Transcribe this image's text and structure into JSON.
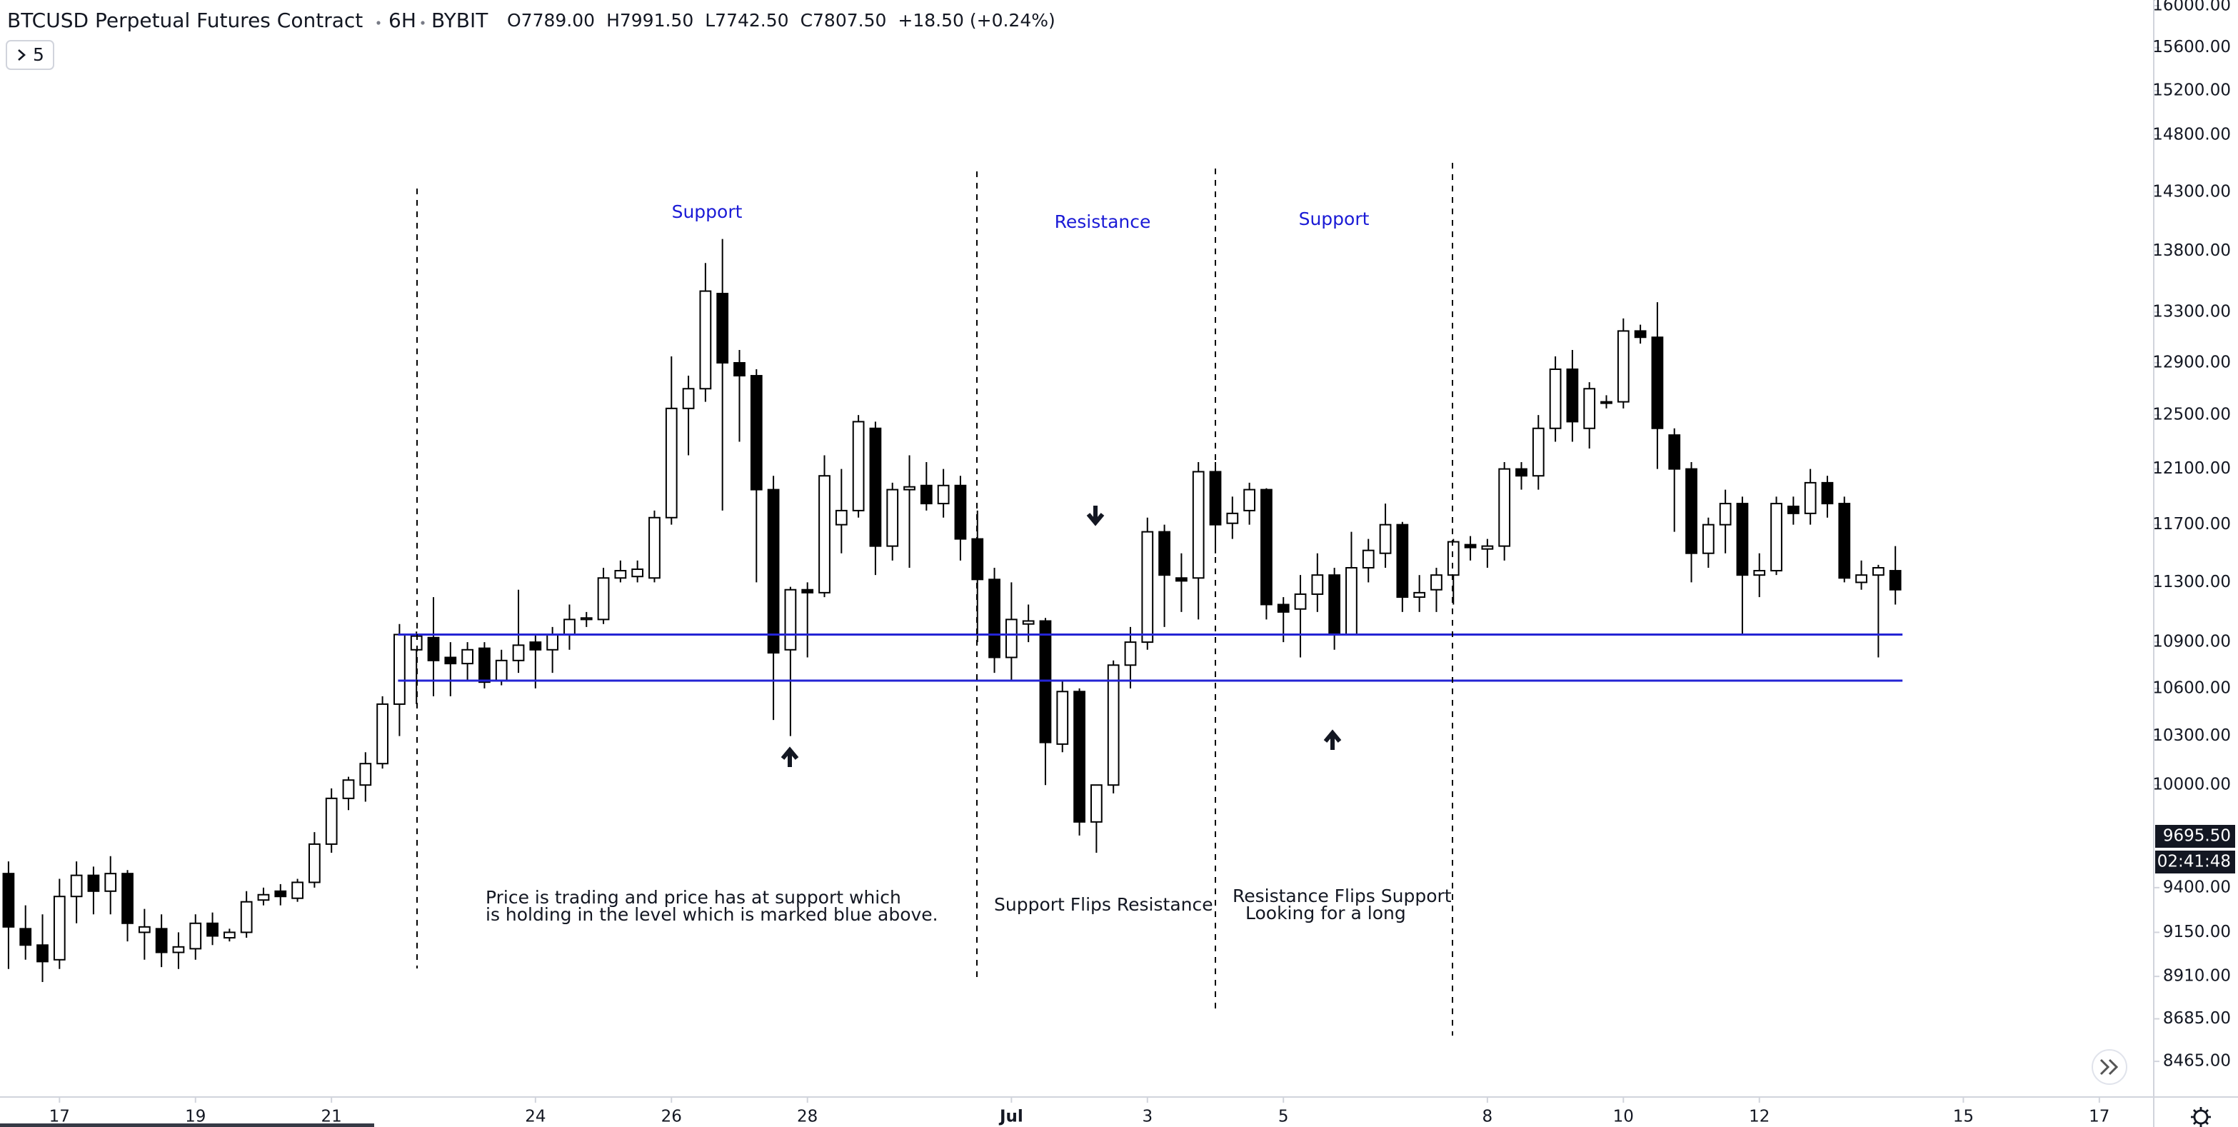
{
  "chart_data": {
    "type": "candlestick",
    "title": "BTCUSD Perpetual Futures Contract",
    "interval": "6H",
    "exchange": "BYBIT",
    "legend": [
      "O7789.00",
      "H7991.50",
      "L7742.50",
      "C7807.50",
      "+18.50 (+0.24%)"
    ],
    "indicator_count": "5",
    "log_scale": true,
    "up_color": "#ffffff",
    "down_color": "#000000",
    "outline_color": "#000000",
    "open": [
      9480,
      9170,
      9080,
      9000,
      9350,
      9470,
      9380,
      9480,
      9150,
      9170,
      9040,
      9060,
      9200,
      9120,
      9150,
      9330,
      9380,
      9340,
      9430,
      9650,
      9920,
      10000,
      10130,
      10500,
      10850,
      10930,
      10800,
      10760,
      10860,
      10650,
      10780,
      10900,
      10850,
      10950,
      11050,
      11050,
      11330,
      11340,
      11330,
      11750,
      12550,
      12700,
      13450,
      12900,
      12800,
      11950,
      10850,
      11250,
      11230,
      11700,
      11800,
      12400,
      11550,
      11950,
      11980,
      11850,
      11980,
      11600,
      11320,
      10800,
      11020,
      11040,
      10250,
      10580,
      9780,
      10000,
      10750,
      10900,
      11650,
      11330,
      11330,
      12080,
      11710,
      11800,
      11950,
      11150,
      11120,
      11220,
      11350,
      10950,
      11400,
      11500,
      11700,
      11200,
      11250,
      11350,
      11560,
      11530,
      11550,
      12100,
      12050,
      12400,
      12850,
      12400,
      12600,
      12600,
      13150,
      13100,
      12350,
      12100,
      11500,
      11700,
      11850,
      11350,
      11380,
      11830,
      11780,
      12000,
      11850,
      11300,
      11350,
      11380
    ],
    "high": [
      9550,
      9300,
      9250,
      9450,
      9550,
      9520,
      9580,
      9500,
      9280,
      9250,
      9150,
      9250,
      9260,
      9170,
      9380,
      9400,
      9420,
      9450,
      9720,
      9980,
      10050,
      10200,
      10550,
      11020,
      10970,
      11200,
      10900,
      10900,
      10900,
      10850,
      11250,
      10950,
      11000,
      11150,
      11100,
      11400,
      11450,
      11450,
      11800,
      12950,
      12800,
      13700,
      13900,
      13000,
      12850,
      12050,
      11270,
      11300,
      12200,
      12100,
      12500,
      12450,
      12000,
      12200,
      12150,
      12100,
      12050,
      11800,
      11400,
      11300,
      11150,
      11060,
      10650,
      10600,
      10000,
      10780,
      11000,
      11750,
      11700,
      11500,
      12150,
      12150,
      11900,
      12000,
      11960,
      11200,
      11350,
      11500,
      11400,
      11650,
      11600,
      11850,
      11720,
      11350,
      11400,
      11600,
      11620,
      11600,
      12150,
      12150,
      12500,
      12950,
      13000,
      12750,
      12650,
      13250,
      13200,
      13380,
      12400,
      12150,
      11750,
      11950,
      11900,
      11500,
      11900,
      11900,
      12100,
      12050,
      11900,
      11450,
      11420,
      11550
    ],
    "low": [
      8950,
      9000,
      8880,
      8950,
      9200,
      9250,
      9250,
      9100,
      9000,
      8960,
      8950,
      9000,
      9080,
      9100,
      9120,
      9300,
      9300,
      9320,
      9400,
      9600,
      9850,
      9900,
      10100,
      10300,
      10500,
      10550,
      10550,
      10650,
      10600,
      10620,
      10700,
      10600,
      10700,
      10850,
      11000,
      11020,
      11300,
      11300,
      11300,
      11700,
      12200,
      12600,
      11800,
      12300,
      11300,
      10400,
      10300,
      10800,
      11200,
      11500,
      11750,
      11350,
      11450,
      11400,
      11800,
      11750,
      11450,
      10900,
      10700,
      10650,
      10900,
      10000,
      10200,
      9700,
      9600,
      9950,
      10600,
      10850,
      11000,
      11100,
      11050,
      11500,
      11600,
      11700,
      11050,
      10900,
      10800,
      11100,
      10850,
      10950,
      11300,
      11400,
      11100,
      11100,
      11100,
      11150,
      11450,
      11400,
      11450,
      11950,
      11950,
      12300,
      12300,
      12250,
      12550,
      12550,
      13050,
      12100,
      11650,
      11300,
      11400,
      11500,
      10950,
      11200,
      11350,
      11700,
      11700,
      11750,
      11300,
      11250,
      10800,
      11150
    ],
    "close": [
      9180,
      9080,
      8990,
      9350,
      9470,
      9380,
      9480,
      9200,
      9180,
      9040,
      9070,
      9200,
      9130,
      9150,
      9320,
      9360,
      9350,
      9430,
      9650,
      9920,
      10030,
      10130,
      10500,
      10950,
      10940,
      10780,
      10760,
      10850,
      10640,
      10780,
      10880,
      10850,
      10950,
      11050,
      11060,
      11330,
      11380,
      11390,
      11750,
      12550,
      12700,
      13470,
      12900,
      12800,
      11950,
      10830,
      11250,
      11230,
      12050,
      11800,
      12450,
      11550,
      11950,
      11970,
      11850,
      11980,
      11600,
      11320,
      10800,
      11050,
      11040,
      10260,
      10580,
      9780,
      10000,
      10750,
      10900,
      11650,
      11350,
      11310,
      12080,
      11700,
      11780,
      11950,
      11150,
      11100,
      11220,
      11350,
      10950,
      11400,
      11520,
      11700,
      11200,
      11230,
      11350,
      11580,
      11540,
      11550,
      12100,
      12050,
      12400,
      12850,
      12450,
      12700,
      12590,
      13150,
      13100,
      12400,
      12100,
      11500,
      11700,
      11850,
      11350,
      11380,
      11850,
      11780,
      12000,
      11850,
      11330,
      11350,
      11400,
      11250
    ],
    "levels": [
      10950,
      10650
    ],
    "level_color": "#2424d4",
    "ylim": [
      8285,
      16055
    ],
    "yticks": [
      {
        "value": 16000,
        "label": "16000.00"
      },
      {
        "value": 15600,
        "label": "15600.00"
      },
      {
        "value": 15200,
        "label": "15200.00"
      },
      {
        "value": 14800,
        "label": "14800.00"
      },
      {
        "value": 14300,
        "label": "14300.00"
      },
      {
        "value": 13800,
        "label": "13800.00"
      },
      {
        "value": 13300,
        "label": "13300.00"
      },
      {
        "value": 12900,
        "label": "12900.00"
      },
      {
        "value": 12500,
        "label": "12500.00"
      },
      {
        "value": 12100,
        "label": "12100.00"
      },
      {
        "value": 11700,
        "label": "11700.00"
      },
      {
        "value": 11300,
        "label": "11300.00"
      },
      {
        "value": 10900,
        "label": "10900.00"
      },
      {
        "value": 10600,
        "label": "10600.00"
      },
      {
        "value": 10300,
        "label": "10300.00"
      },
      {
        "value": 10000,
        "label": "10000.00"
      },
      {
        "value": 9400,
        "label": "9400.00"
      },
      {
        "value": 9150,
        "label": "9150.00"
      },
      {
        "value": 8910,
        "label": "8910.00"
      },
      {
        "value": 8685,
        "label": "8685.00"
      },
      {
        "value": 8465,
        "label": "8465.00"
      }
    ],
    "last_price": {
      "value": 9695.5,
      "label": "9695.50"
    },
    "countdown": "02:41:48",
    "xlim": [
      -0.5,
      126.2
    ],
    "xticks": [
      {
        "value": 3,
        "label": "17"
      },
      {
        "value": 11,
        "label": "19"
      },
      {
        "value": 19,
        "label": "21"
      },
      {
        "value": 31,
        "label": "24"
      },
      {
        "value": 39,
        "label": "26"
      },
      {
        "value": 47,
        "label": "28"
      },
      {
        "value": 59,
        "label": "Jul"
      },
      {
        "value": 67,
        "label": "3"
      },
      {
        "value": 75,
        "label": "5"
      },
      {
        "value": 87,
        "label": "8"
      },
      {
        "value": 95,
        "label": "10"
      },
      {
        "value": 103,
        "label": "12"
      },
      {
        "value": 115,
        "label": "15"
      },
      {
        "value": 123,
        "label": "17"
      }
    ],
    "annotations": {
      "support_1": "Support",
      "resistance": "Resistance",
      "support_2": "Support",
      "note_1": [
        "Price is trading and price has at support which",
        "is holding in the level which is marked blue above."
      ],
      "note_2": "Support Flips Resistance",
      "note_3": [
        "Resistance Flips Support",
        "Looking for a long"
      ]
    }
  }
}
